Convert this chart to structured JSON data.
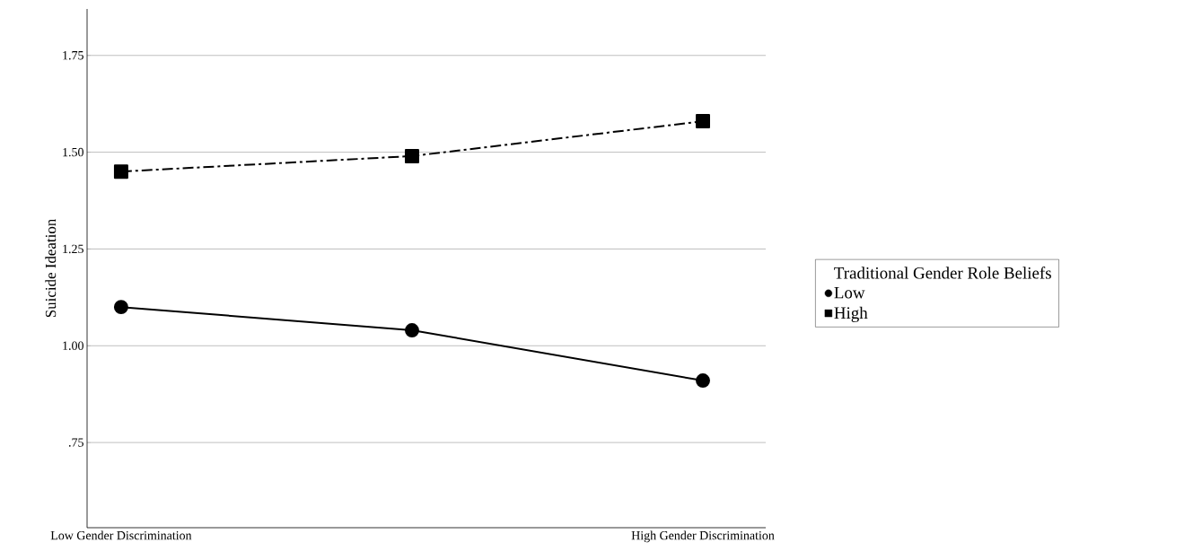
{
  "chart_data": {
    "type": "line",
    "ylabel": "Suicide Ideation",
    "legend_title": "Traditional Gender Role Beliefs",
    "categories": [
      "Low Gender Discrimination",
      null,
      "High Gender Discrimination"
    ],
    "ylim": [
      0.53,
      1.87
    ],
    "yticks": [
      {
        "value": 0.75,
        "label": ".75"
      },
      {
        "value": 1.0,
        "label": "1.00"
      },
      {
        "value": 1.25,
        "label": "1.25"
      },
      {
        "value": 1.5,
        "label": "1.50"
      },
      {
        "value": 1.75,
        "label": "1.75"
      }
    ],
    "grid": "y",
    "legend": "right",
    "series": [
      {
        "name": "Low",
        "color": "#000000",
        "marker": "circle",
        "line_style": "solid",
        "values": [
          1.1,
          1.04,
          0.91
        ]
      },
      {
        "name": "High",
        "color": "#000000",
        "marker": "square",
        "line_style": "dashdot",
        "values": [
          1.45,
          1.49,
          1.58
        ]
      }
    ]
  }
}
